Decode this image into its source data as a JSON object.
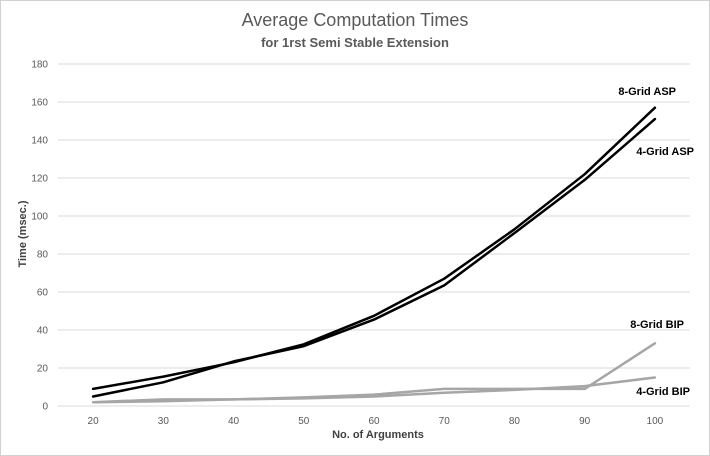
{
  "chart_data": {
    "type": "line",
    "title": "Average Computation Times",
    "subtitle": "for 1rst Semi Stable Extension",
    "xlabel": "No. of Arguments",
    "ylabel": "Time (msec.)",
    "x": [
      20,
      30,
      40,
      50,
      60,
      70,
      80,
      90,
      100
    ],
    "x_tick_labels": [
      "20",
      "30",
      "40",
      "50",
      "60",
      "70",
      "80",
      "90",
      "100"
    ],
    "ylim": [
      0,
      180
    ],
    "y_ticks": [
      0,
      20,
      40,
      60,
      80,
      100,
      120,
      140,
      160,
      180
    ],
    "y_tick_labels": [
      "0",
      "20",
      "40",
      "60",
      "80",
      "100",
      "120",
      "140",
      "160",
      "180"
    ],
    "grid": "horizontal",
    "series": [
      {
        "name": "8-Grid ASP",
        "values": [
          9,
          15.5,
          23,
          32.5,
          47.5,
          67,
          93,
          122,
          157
        ],
        "color": "#000000"
      },
      {
        "name": "4-Grid ASP",
        "values": [
          5,
          12.5,
          23.5,
          31.5,
          45.5,
          63.5,
          91,
          119,
          151
        ],
        "color": "#000000"
      },
      {
        "name": "8-Grid BIP",
        "values": [
          2,
          3.5,
          3.5,
          4.5,
          6,
          9,
          9,
          9,
          33
        ],
        "color": "#a6a6a6"
      },
      {
        "name": "4-Grid BIP",
        "values": [
          2,
          2.5,
          3.5,
          4,
          5,
          7,
          8.5,
          10.5,
          15
        ],
        "color": "#a6a6a6"
      }
    ]
  }
}
